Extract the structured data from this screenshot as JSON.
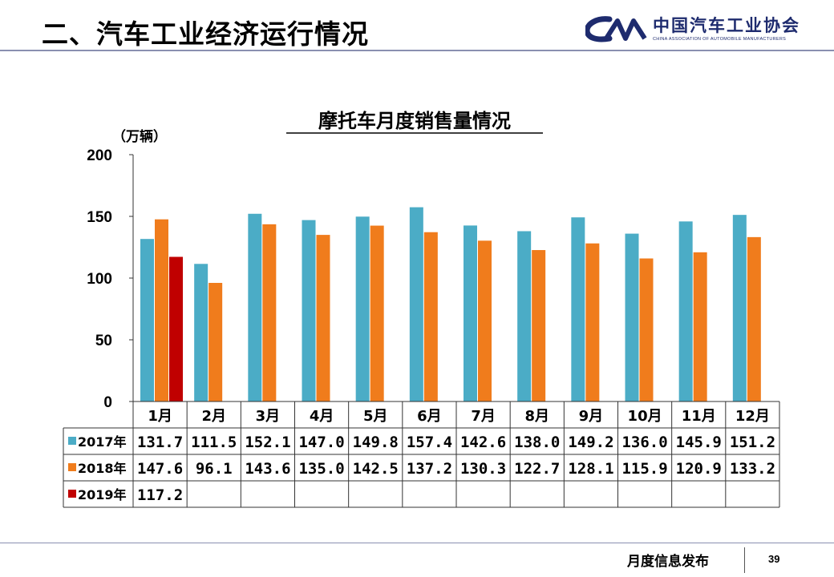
{
  "header": {
    "title": "二、汽车工业经济运行情况",
    "logo_cn": "中国汽车工业协会",
    "logo_en": "CHINA ASSOCIATION OF AUTOMOBILE MANUFACTURERS"
  },
  "footer": {
    "text": "月度信息发布",
    "page_number": "39"
  },
  "colors": {
    "s2017": "#4bacc6",
    "s2018": "#f07c1c",
    "s2019": "#c00000",
    "logo": "#1e2b6e"
  },
  "chart_data": {
    "type": "bar",
    "title": "摩托车月度销售量情况",
    "ylabel": "（万辆）",
    "ylim": [
      0,
      200
    ],
    "yticks": [
      "0",
      "50",
      "100",
      "150",
      "200"
    ],
    "categories": [
      "1月",
      "2月",
      "3月",
      "4月",
      "5月",
      "6月",
      "7月",
      "8月",
      "9月",
      "10月",
      "11月",
      "12月"
    ],
    "series": [
      {
        "name": "2017年",
        "color": "#4bacc6",
        "values": [
          131.7,
          111.5,
          152.1,
          147.0,
          149.8,
          157.4,
          142.6,
          138.0,
          149.2,
          136.0,
          145.9,
          151.2
        ]
      },
      {
        "name": "2018年",
        "color": "#f07c1c",
        "values": [
          147.6,
          96.1,
          143.6,
          135.0,
          142.5,
          137.2,
          130.3,
          122.7,
          128.1,
          115.9,
          120.9,
          133.2
        ]
      },
      {
        "name": "2019年",
        "color": "#c00000",
        "values": [
          117.2,
          null,
          null,
          null,
          null,
          null,
          null,
          null,
          null,
          null,
          null,
          null
        ]
      }
    ],
    "table_labels": {
      "s2017": [
        "131.7",
        "111.5",
        "152.1",
        "147.0",
        "149.8",
        "157.4",
        "142.6",
        "138.0",
        "149.2",
        "136.0",
        "145.9",
        "151.2"
      ],
      "s2018": [
        "147.6",
        "96.1",
        "143.6",
        "135.0",
        "142.5",
        "137.2",
        "130.3",
        "122.7",
        "128.1",
        "115.9",
        "120.9",
        "133.2"
      ],
      "s2019": [
        "117.2",
        "",
        "",
        "",
        "",
        "",
        "",
        "",
        "",
        "",
        "",
        ""
      ]
    },
    "grid": false,
    "legend": "data-table"
  }
}
